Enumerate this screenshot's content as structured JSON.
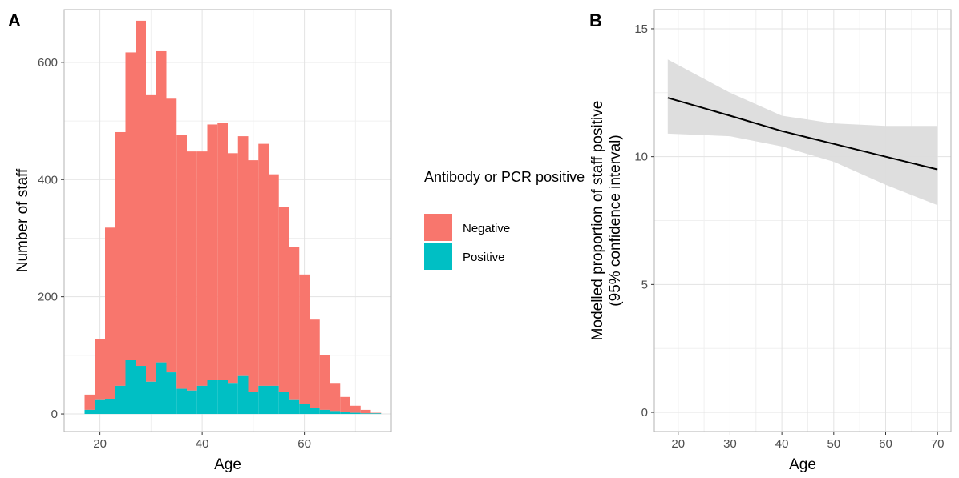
{
  "chart_data": [
    {
      "panel": "A",
      "type": "bar",
      "subtype": "stacked-histogram",
      "xlabel": "Age",
      "ylabel": "Number of staff",
      "xlim": [
        13,
        77
      ],
      "ylim": [
        -30,
        690
      ],
      "x_ticks": [
        20,
        40,
        60
      ],
      "y_ticks": [
        0,
        200,
        400,
        600
      ],
      "grid": true,
      "legend": {
        "title": "Antibody or PCR positive",
        "placement": "right",
        "entries": [
          "Negative",
          "Positive"
        ]
      },
      "bin_width": 2,
      "bin_starts": [
        17,
        19,
        21,
        23,
        25,
        27,
        29,
        31,
        33,
        35,
        37,
        39,
        41,
        43,
        45,
        47,
        49,
        51,
        53,
        55,
        57,
        59,
        61,
        63,
        65,
        67,
        69,
        71,
        73
      ],
      "series": [
        {
          "name": "Negative",
          "color": "#F8766D",
          "values": [
            26,
            103,
            292,
            433,
            525,
            589,
            489,
            531,
            467,
            433,
            408,
            400,
            436,
            439,
            392,
            408,
            395,
            413,
            361,
            315,
            260,
            221,
            151,
            93,
            48,
            25,
            12,
            6,
            1
          ]
        },
        {
          "name": "Positive",
          "color": "#00BFC4",
          "values": [
            7,
            25,
            26,
            48,
            92,
            82,
            55,
            88,
            71,
            43,
            40,
            48,
            58,
            58,
            53,
            66,
            38,
            48,
            48,
            38,
            25,
            17,
            10,
            7,
            5,
            4,
            2,
            1,
            1
          ]
        }
      ]
    },
    {
      "panel": "B",
      "type": "line",
      "xlabel": "Age",
      "ylabel": "Modelled proportion of staff positive (95% confidence interval)",
      "ylabel_lines": [
        "Modelled proportion of staff positive",
        "(95% confidence interval)"
      ],
      "xlim": [
        15.4,
        72.6
      ],
      "ylim": [
        -0.75,
        15.75
      ],
      "x_ticks": [
        20,
        30,
        40,
        50,
        60,
        70
      ],
      "y_ticks": [
        0,
        5,
        10,
        15
      ],
      "grid": true,
      "series": [
        {
          "x": [
            18,
            30,
            40,
            50,
            60,
            70
          ],
          "values": [
            12.3,
            11.6,
            11.0,
            10.5,
            10.0,
            9.5
          ],
          "color": "#000000",
          "ci_lower": [
            10.9,
            10.8,
            10.4,
            9.8,
            8.9,
            8.1
          ],
          "ci_upper": [
            13.8,
            12.5,
            11.6,
            11.3,
            11.2,
            11.2
          ],
          "ci_color": "#dcdcdc"
        }
      ]
    }
  ]
}
